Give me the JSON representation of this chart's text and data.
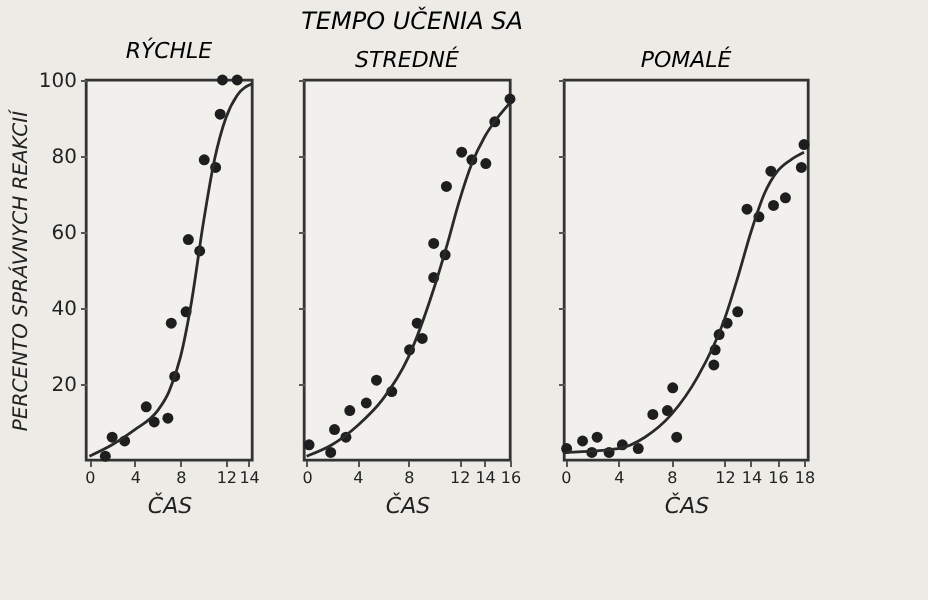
{
  "chart_data": [
    {
      "type": "scatter",
      "title": "RÝCHLE",
      "annotations": [
        "TEMPO UČENIA SA"
      ],
      "xlabel": "ČAS",
      "ylabel": "PERCENTO SPRÁVNYCH REAKCIÍ",
      "xlim": [
        -0.3,
        14.3
      ],
      "xticks": [
        0,
        4,
        8,
        12,
        14
      ],
      "ylim": [
        0,
        100
      ],
      "yticks": [
        20,
        40,
        60,
        80,
        100
      ],
      "grid": false,
      "series": [
        {
          "color": "#1e1e1e",
          "marker": "circle",
          "x": [
            1.4,
            2.0,
            3.1,
            5.0,
            5.7,
            6.9,
            7.2,
            7.5,
            8.5,
            8.7,
            9.7,
            10.1,
            11.1,
            11.5,
            11.7,
            13.0
          ],
          "values": [
            1,
            6,
            5,
            14,
            10,
            11,
            36,
            22,
            39,
            58,
            55,
            79,
            77,
            91,
            100,
            100
          ]
        },
        {
          "type": "line",
          "color": "#2a2a2a",
          "line_style": "solid",
          "x": [
            0,
            2,
            4,
            6,
            7,
            8,
            9,
            10,
            11,
            12,
            13,
            14.3
          ],
          "values": [
            1,
            4,
            8,
            13,
            18,
            27,
            42,
            62,
            79,
            90,
            96,
            99
          ]
        }
      ]
    },
    {
      "type": "scatter",
      "title": "STREDNÉ",
      "xlabel": "ČAS",
      "xlim": [
        -0.2,
        16
      ],
      "xticks": [
        0,
        4,
        8,
        12,
        14,
        16
      ],
      "ylim": [
        0,
        100
      ],
      "yticks": [
        20,
        40,
        60,
        80,
        100
      ],
      "tick_labels": "x",
      "grid": false,
      "series": [
        {
          "color": "#1e1e1e",
          "marker": "circle",
          "x": [
            0.2,
            1.9,
            2.2,
            3.1,
            3.4,
            4.7,
            5.5,
            6.7,
            8.1,
            8.7,
            9.1,
            10.0,
            10.0,
            10.9,
            11.0,
            12.2,
            13.0,
            14.1,
            14.8,
            16.0
          ],
          "values": [
            4,
            2,
            8,
            6,
            13,
            15,
            21,
            18,
            29,
            36,
            32,
            48,
            57,
            54,
            72,
            81,
            79,
            78,
            89,
            95
          ]
        },
        {
          "type": "line",
          "color": "#2a2a2a",
          "line_style": "solid",
          "x": [
            0,
            2,
            4,
            6,
            8,
            10,
            11,
            12,
            13,
            14,
            15,
            16
          ],
          "values": [
            1,
            4,
            9,
            16,
            27,
            45,
            56,
            68,
            78,
            85,
            90,
            94
          ]
        }
      ]
    },
    {
      "type": "scatter",
      "title": "POMALÉ",
      "xlabel": "ČAS",
      "xlim": [
        -0.1,
        18.3
      ],
      "xticks": [
        0,
        4,
        8,
        12,
        14,
        16,
        18
      ],
      "ylim": [
        0,
        100
      ],
      "yticks": [
        20,
        40,
        60,
        80,
        100
      ],
      "tick_labels": "x",
      "grid": false,
      "series": [
        {
          "color": "#1e1e1e",
          "marker": "circle",
          "x": [
            0.1,
            1.3,
            2.0,
            2.4,
            3.3,
            4.3,
            5.5,
            6.6,
            7.7,
            8.1,
            8.4,
            11.2,
            11.3,
            11.6,
            12.2,
            13.0,
            13.7,
            14.6,
            15.5,
            15.7,
            16.6,
            17.8,
            18.0
          ],
          "values": [
            3,
            5,
            2,
            6,
            2,
            4,
            3,
            12,
            13,
            19,
            6,
            25,
            29,
            33,
            36,
            39,
            66,
            64,
            76,
            67,
            69,
            77,
            83
          ]
        },
        {
          "type": "line",
          "color": "#2a2a2a",
          "line_style": "solid",
          "x": [
            0,
            4,
            6,
            8,
            10,
            12,
            13,
            14,
            15,
            16,
            17,
            18
          ],
          "values": [
            2,
            3,
            6,
            12,
            22,
            37,
            48,
            60,
            70,
            76,
            79,
            81
          ]
        }
      ]
    }
  ]
}
